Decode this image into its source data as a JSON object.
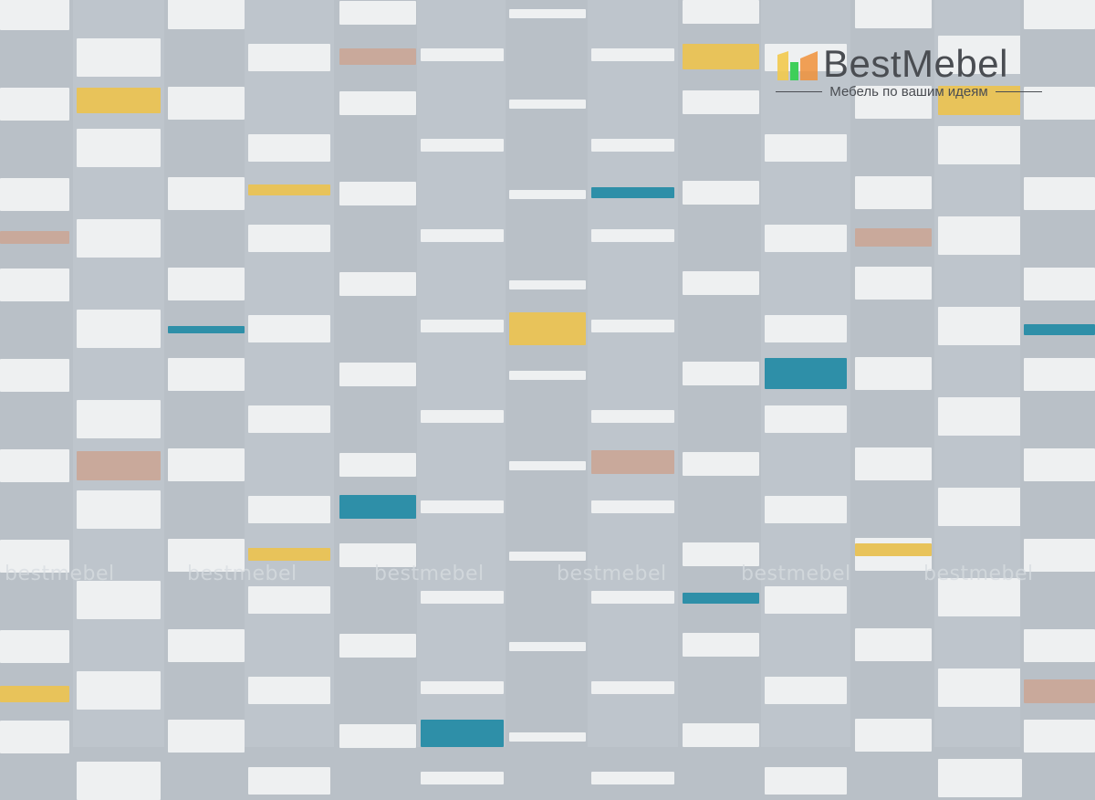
{
  "logo": {
    "brand": "BestMebel",
    "tagline": "Мебель по вашим идеям",
    "icon": "bar-chart-logo-icon",
    "icon_colors": [
      "#f2c94c",
      "#3ecf5a",
      "#f0913a"
    ]
  },
  "watermark": {
    "text": "bestmebel",
    "repeat": 6
  },
  "colors": {
    "background": "#b9c0c7",
    "background_alt": "#bec5cc",
    "white": "#eef0f1",
    "yellow": "#e8c35a",
    "teal": "#2e8fa8",
    "pink": "#c9a99b"
  }
}
